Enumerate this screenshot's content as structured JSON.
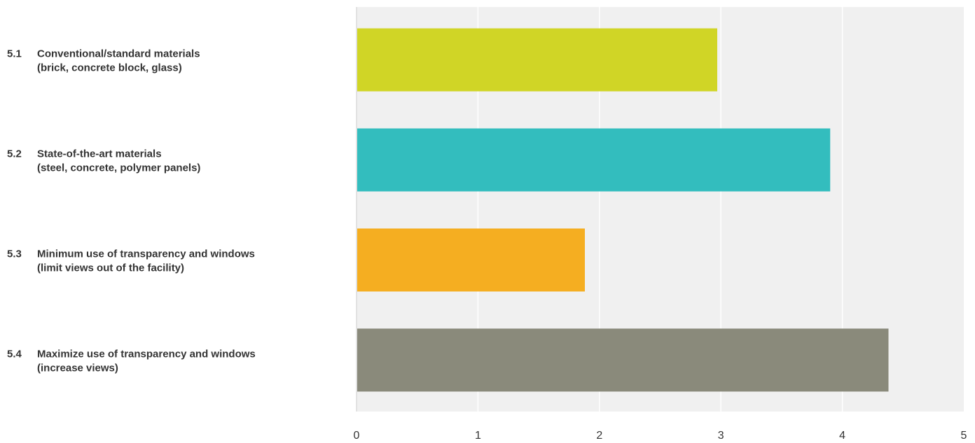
{
  "chart_data": {
    "type": "bar",
    "orientation": "horizontal",
    "title": "",
    "xlabel": "",
    "ylabel": "",
    "xlim": [
      0,
      5
    ],
    "x_ticks": [
      "0",
      "1",
      "2",
      "3",
      "4",
      "5"
    ],
    "grid": true,
    "categories": [
      {
        "number": "5.1",
        "lines": [
          "Conventional/standard materials",
          "(brick, concrete block, glass)"
        ]
      },
      {
        "number": "5.2",
        "lines": [
          "State-of-the-art materials",
          "(steel, concrete, polymer panels)"
        ]
      },
      {
        "number": "5.3",
        "lines": [
          "Minimum use of transparency and windows",
          "(limit views out of the facility)"
        ]
      },
      {
        "number": "5.4",
        "lines": [
          "Maximize use of transparency and windows",
          "(increase views)"
        ]
      }
    ],
    "values": [
      2.97,
      3.9,
      1.88,
      4.38
    ],
    "colors": [
      "#d0d526",
      "#33bdbe",
      "#f5ae21",
      "#8a8a7b"
    ],
    "plot_background": "#f0f0f0",
    "grid_color": "#ffffff"
  }
}
